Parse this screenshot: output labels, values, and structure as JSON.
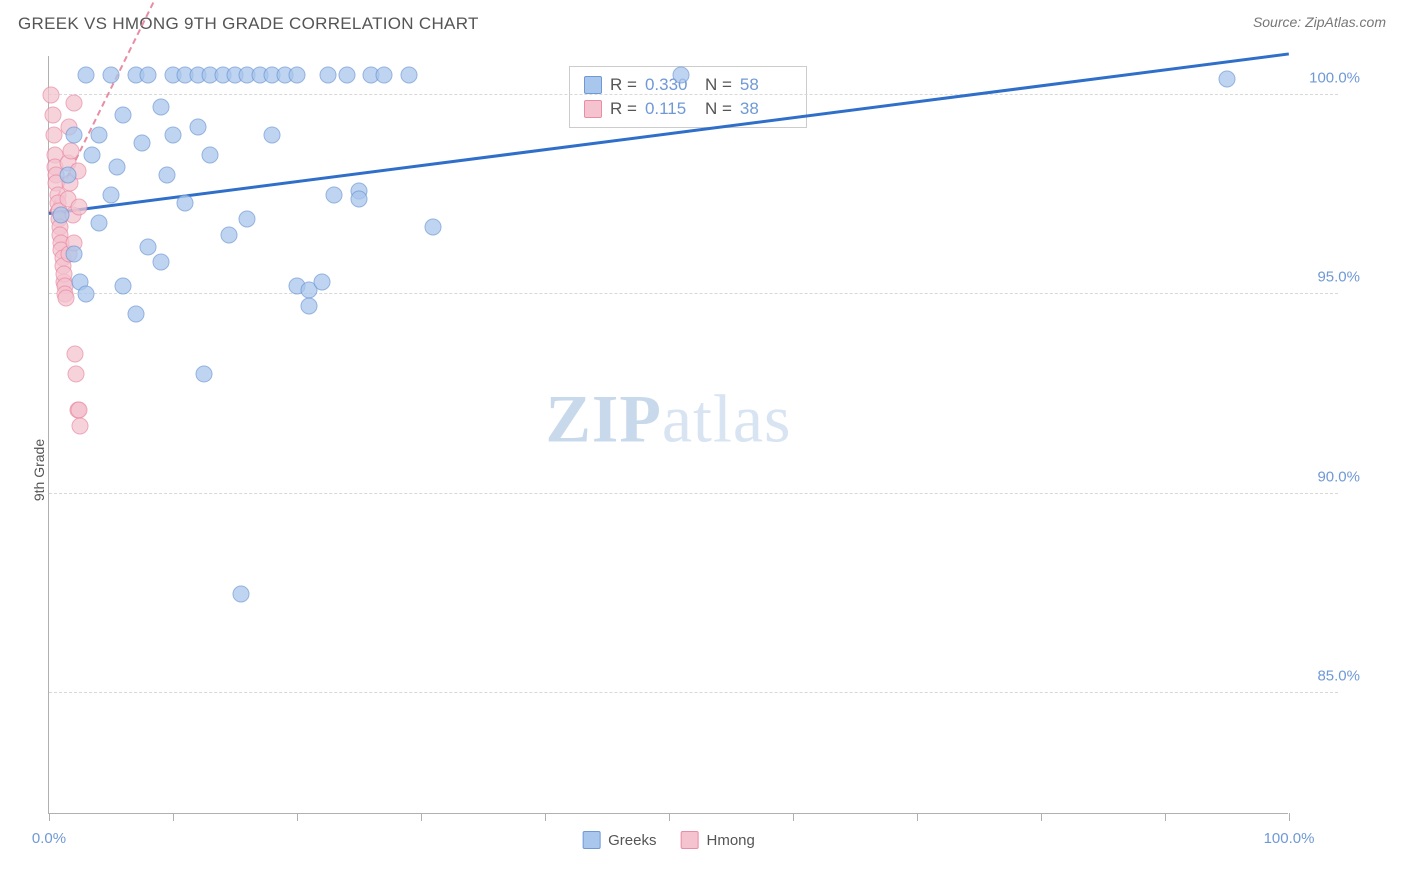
{
  "title": "GREEK VS HMONG 9TH GRADE CORRELATION CHART",
  "source": "Source: ZipAtlas.com",
  "ylabel": "9th Grade",
  "watermark_zip": "ZIP",
  "watermark_atlas": "atlas",
  "chart": {
    "type": "scatter",
    "xlim": [
      0,
      100
    ],
    "ylim": [
      82,
      101
    ],
    "y_ticks": [
      85,
      90,
      95,
      100
    ],
    "y_tick_labels": [
      "85.0%",
      "90.0%",
      "95.0%",
      "100.0%"
    ],
    "x_ticks": [
      0,
      10,
      20,
      30,
      40,
      50,
      60,
      70,
      80,
      90,
      100
    ],
    "x_start_label": "0.0%",
    "x_end_label": "100.0%",
    "background_color": "#ffffff",
    "grid_color": "#d8d8d8",
    "axis_color": "#b0b0b0",
    "tick_label_color": "#6f99d6",
    "series": {
      "greeks": {
        "label": "Greeks",
        "fill": "#a9c6ec",
        "stroke": "#6f99d6",
        "trend_color": "#2f6fc9",
        "trend_dashed": false,
        "R": "0.330",
        "N": "58",
        "trend": {
          "y_at_x0": 97.0,
          "y_at_x100": 101.0
        },
        "points": [
          {
            "x": 1,
            "y": 97
          },
          {
            "x": 1.5,
            "y": 98
          },
          {
            "x": 2,
            "y": 99
          },
          {
            "x": 2,
            "y": 96
          },
          {
            "x": 2.5,
            "y": 95.3
          },
          {
            "x": 3,
            "y": 100.5
          },
          {
            "x": 3,
            "y": 95
          },
          {
            "x": 3.5,
            "y": 98.5
          },
          {
            "x": 4,
            "y": 96.8
          },
          {
            "x": 4,
            "y": 99
          },
          {
            "x": 5,
            "y": 100.5
          },
          {
            "x": 5,
            "y": 97.5
          },
          {
            "x": 5.5,
            "y": 98.2
          },
          {
            "x": 6,
            "y": 95.2
          },
          {
            "x": 6,
            "y": 99.5
          },
          {
            "x": 7,
            "y": 100.5
          },
          {
            "x": 7,
            "y": 94.5
          },
          {
            "x": 7.5,
            "y": 98.8
          },
          {
            "x": 8,
            "y": 96.2
          },
          {
            "x": 8,
            "y": 100.5
          },
          {
            "x": 9,
            "y": 99.7
          },
          {
            "x": 9,
            "y": 95.8
          },
          {
            "x": 9.5,
            "y": 98
          },
          {
            "x": 10,
            "y": 100.5
          },
          {
            "x": 10,
            "y": 99
          },
          {
            "x": 11,
            "y": 100.5
          },
          {
            "x": 11,
            "y": 97.3
          },
          {
            "x": 12,
            "y": 100.5
          },
          {
            "x": 12,
            "y": 99.2
          },
          {
            "x": 12.5,
            "y": 93
          },
          {
            "x": 13,
            "y": 98.5
          },
          {
            "x": 13,
            "y": 100.5
          },
          {
            "x": 14,
            "y": 100.5
          },
          {
            "x": 14.5,
            "y": 96.5
          },
          {
            "x": 15,
            "y": 100.5
          },
          {
            "x": 15.5,
            "y": 87.5
          },
          {
            "x": 16,
            "y": 100.5
          },
          {
            "x": 16,
            "y": 96.9
          },
          {
            "x": 17,
            "y": 100.5
          },
          {
            "x": 18,
            "y": 99
          },
          {
            "x": 18,
            "y": 100.5
          },
          {
            "x": 19,
            "y": 100.5
          },
          {
            "x": 20,
            "y": 95.2
          },
          {
            "x": 20,
            "y": 100.5
          },
          {
            "x": 21,
            "y": 95.1
          },
          {
            "x": 21,
            "y": 94.7
          },
          {
            "x": 22,
            "y": 95.3
          },
          {
            "x": 22.5,
            "y": 100.5
          },
          {
            "x": 23,
            "y": 97.5
          },
          {
            "x": 24,
            "y": 100.5
          },
          {
            "x": 25,
            "y": 97.6
          },
          {
            "x": 25,
            "y": 97.4
          },
          {
            "x": 26,
            "y": 100.5
          },
          {
            "x": 27,
            "y": 100.5
          },
          {
            "x": 29,
            "y": 100.5
          },
          {
            "x": 31,
            "y": 96.7
          },
          {
            "x": 51,
            "y": 100.5
          },
          {
            "x": 95,
            "y": 100.4
          }
        ]
      },
      "hmong": {
        "label": "Hmong",
        "fill": "#f4c3cf",
        "stroke": "#e98ca4",
        "trend_color": "#e98ca4",
        "trend_dashed": true,
        "R": "0.115",
        "N": "38",
        "trend": {
          "y_at_x0": 97.0,
          "y_at_x100": 160.0
        },
        "points": [
          {
            "x": 0.2,
            "y": 100
          },
          {
            "x": 0.3,
            "y": 99.5
          },
          {
            "x": 0.4,
            "y": 99
          },
          {
            "x": 0.5,
            "y": 98.5
          },
          {
            "x": 0.5,
            "y": 98.2
          },
          {
            "x": 0.6,
            "y": 98
          },
          {
            "x": 0.6,
            "y": 97.8
          },
          {
            "x": 0.7,
            "y": 97.5
          },
          {
            "x": 0.7,
            "y": 97.3
          },
          {
            "x": 0.8,
            "y": 97.1
          },
          {
            "x": 0.8,
            "y": 96.9
          },
          {
            "x": 0.9,
            "y": 96.7
          },
          {
            "x": 0.9,
            "y": 96.5
          },
          {
            "x": 1.0,
            "y": 96.3
          },
          {
            "x": 1.0,
            "y": 96.1
          },
          {
            "x": 1.1,
            "y": 95.9
          },
          {
            "x": 1.1,
            "y": 95.7
          },
          {
            "x": 1.2,
            "y": 95.3
          },
          {
            "x": 1.2,
            "y": 95.5
          },
          {
            "x": 1.3,
            "y": 95.2
          },
          {
            "x": 1.3,
            "y": 95.0
          },
          {
            "x": 1.4,
            "y": 94.9
          },
          {
            "x": 1.5,
            "y": 98.3
          },
          {
            "x": 1.5,
            "y": 97.4
          },
          {
            "x": 1.6,
            "y": 96.0
          },
          {
            "x": 1.6,
            "y": 99.2
          },
          {
            "x": 1.7,
            "y": 97.8
          },
          {
            "x": 1.8,
            "y": 98.6
          },
          {
            "x": 1.9,
            "y": 97.0
          },
          {
            "x": 2.0,
            "y": 99.8
          },
          {
            "x": 2.0,
            "y": 96.3
          },
          {
            "x": 2.1,
            "y": 93.5
          },
          {
            "x": 2.2,
            "y": 93.0
          },
          {
            "x": 2.3,
            "y": 92.1
          },
          {
            "x": 2.4,
            "y": 92.1
          },
          {
            "x": 2.5,
            "y": 91.7
          },
          {
            "x": 2.3,
            "y": 98.1
          },
          {
            "x": 2.4,
            "y": 97.2
          }
        ]
      }
    },
    "legend_labels": {
      "R_label": "R = ",
      "N_label": "N = "
    }
  }
}
